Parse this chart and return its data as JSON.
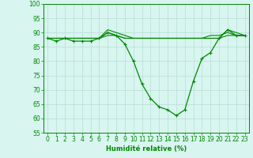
{
  "xlabel": "Humidité relative (%)",
  "bg_color": "#d8f5f0",
  "grid_color": "#b8ddd5",
  "line_color": "#008800",
  "xlim": [
    -0.5,
    23.5
  ],
  "ylim": [
    55,
    100
  ],
  "yticks": [
    55,
    60,
    65,
    70,
    75,
    80,
    85,
    90,
    95,
    100
  ],
  "xticks": [
    0,
    1,
    2,
    3,
    4,
    5,
    6,
    7,
    8,
    9,
    10,
    11,
    12,
    13,
    14,
    15,
    16,
    17,
    18,
    19,
    20,
    21,
    22,
    23
  ],
  "series1": [
    88,
    87,
    88,
    87,
    87,
    87,
    88,
    90,
    89,
    86,
    80,
    72,
    67,
    64,
    63,
    61,
    63,
    73,
    81,
    83,
    88,
    91,
    89,
    89
  ],
  "series2": [
    88,
    88,
    88,
    88,
    88,
    88,
    88,
    89,
    89,
    88,
    88,
    88,
    88,
    88,
    88,
    88,
    88,
    88,
    88,
    88,
    88,
    89,
    89,
    89
  ],
  "series3": [
    88,
    88,
    88,
    88,
    88,
    88,
    88,
    91,
    90,
    89,
    88,
    88,
    88,
    88,
    88,
    88,
    88,
    88,
    88,
    88,
    88,
    91,
    90,
    89
  ],
  "series4": [
    88,
    88,
    88,
    88,
    88,
    88,
    88,
    90,
    89,
    88,
    88,
    88,
    88,
    88,
    88,
    88,
    88,
    88,
    88,
    89,
    89,
    90,
    89,
    89
  ],
  "xlabel_fontsize": 6.0,
  "tick_fontsize": 5.5
}
